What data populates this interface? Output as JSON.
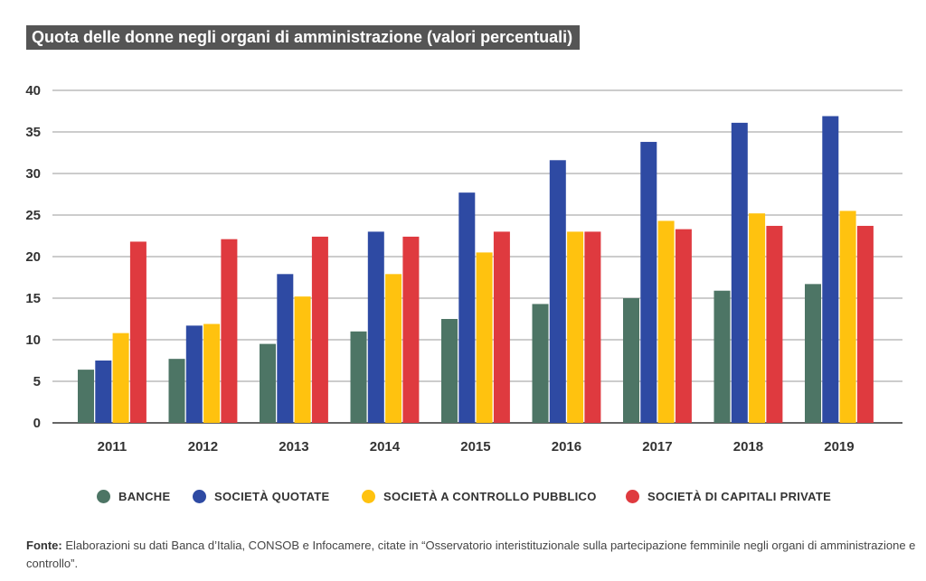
{
  "chart_data": {
    "type": "bar",
    "title": "Quota delle donne negli organi di amministrazione (valori percentuali)",
    "categories": [
      "2011",
      "2012",
      "2013",
      "2014",
      "2015",
      "2016",
      "2017",
      "2018",
      "2019"
    ],
    "series": [
      {
        "name": "BANCHE",
        "color": "#4d7565",
        "values": [
          6.4,
          7.7,
          9.5,
          11.0,
          12.5,
          14.3,
          15.0,
          15.9,
          16.7
        ]
      },
      {
        "name": "SOCIETÀ QUOTATE",
        "color": "#2e4aa3",
        "values": [
          7.5,
          11.7,
          17.9,
          23.0,
          27.7,
          31.6,
          33.8,
          36.1,
          36.9
        ]
      },
      {
        "name": "SOCIETÀ A CONTROLLO PUBBLICO",
        "color": "#ffc20f",
        "values": [
          10.8,
          11.9,
          15.2,
          17.9,
          20.5,
          23.0,
          24.3,
          25.2,
          25.5
        ]
      },
      {
        "name": "SOCIETÀ DI CAPITALI PRIVATE",
        "color": "#df3a3f",
        "values": [
          21.8,
          22.1,
          22.4,
          22.4,
          23.0,
          23.0,
          23.3,
          23.7,
          23.7
        ]
      }
    ],
    "y_ticks": [
      "0",
      "5",
      "10",
      "15",
      "20",
      "25",
      "30",
      "35",
      "40"
    ],
    "ylim": [
      0,
      40
    ],
    "grid": true,
    "legend_position": "bottom"
  },
  "source": {
    "label": "Fonte:",
    "text": " Elaborazioni su dati Banca d’Italia, CONSOB e Infocamere, citate in “Osservatorio interistituzionale sulla partecipazione femminile negli organi di amministrazione e controllo”."
  }
}
